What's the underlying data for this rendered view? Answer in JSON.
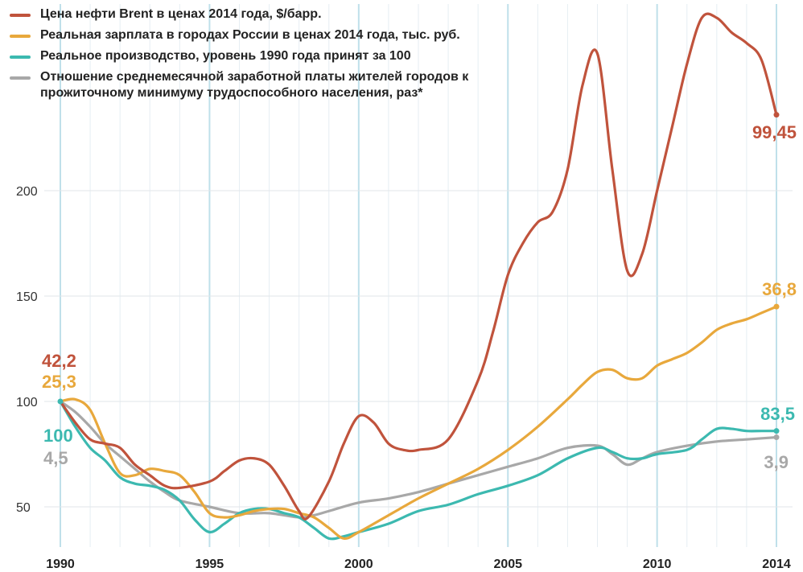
{
  "chart_data": {
    "type": "line",
    "title": "",
    "xlabel": "",
    "ylabel": "",
    "xlim": [
      1990,
      2014
    ],
    "ylim": [
      30,
      275
    ],
    "grid": true,
    "legend_position": "top-left",
    "x_ticks": [
      "1990",
      "1995",
      "2000",
      "2005",
      "2010",
      "2014"
    ],
    "y_ticks": [
      "50",
      "100",
      "150",
      "200"
    ],
    "series": [
      {
        "name": "Цена нефти Brent в ценах 2014 года, $/барр.",
        "color": "#c0533c",
        "x": [
          1990,
          1990.5,
          1991,
          1991.5,
          1992,
          1992.5,
          1993,
          1993.5,
          1994,
          1995,
          1995.5,
          1996,
          1996.5,
          1997,
          1997.5,
          1998,
          1998.3,
          1999,
          1999.5,
          2000,
          2000.5,
          2001,
          2001.5,
          2002,
          2003,
          2004,
          2004.5,
          2005,
          2005.5,
          2006,
          2006.5,
          2007,
          2007.5,
          2008,
          2008.5,
          2009,
          2009.5,
          2010,
          2010.5,
          2011,
          2011.5,
          2012,
          2012.5,
          2013,
          2013.5,
          2014
        ],
        "y": [
          100,
          90,
          82,
          80,
          78,
          70,
          65,
          60,
          59,
          62,
          67,
          72,
          73,
          70,
          60,
          48,
          45,
          62,
          80,
          93,
          90,
          80,
          77,
          77,
          82,
          110,
          133,
          160,
          175,
          185,
          190,
          210,
          250,
          265,
          210,
          162,
          170,
          200,
          230,
          260,
          282,
          282,
          275,
          270,
          262,
          236
        ],
        "label": "99,45",
        "start_label": "42,2"
      },
      {
        "name": "Реальная зарплата в городах России в ценах 2014 года, тыс. руб.",
        "color": "#e8a83c",
        "x": [
          1990,
          1990.5,
          1991,
          1991.5,
          1992,
          1992.5,
          1993,
          1993.5,
          1994,
          1994.5,
          1995,
          1995.5,
          1996,
          1996.5,
          1997,
          1997.5,
          1998,
          1998.5,
          1999,
          1999.5,
          2000,
          2001,
          2002,
          2003,
          2004,
          2005,
          2006,
          2007,
          2007.5,
          2008,
          2008.5,
          2009,
          2009.5,
          2010,
          2010.5,
          2011,
          2011.5,
          2012,
          2012.5,
          2013,
          2013.5,
          2014
        ],
        "y": [
          100,
          101,
          96,
          80,
          66,
          65,
          68,
          67,
          65,
          57,
          47,
          45,
          46,
          48,
          49,
          49,
          47,
          45,
          40,
          35,
          38,
          46,
          54,
          61,
          68,
          77,
          88,
          101,
          108,
          114,
          115,
          111,
          111,
          117,
          120,
          123,
          128,
          134,
          137,
          139,
          142,
          145
        ],
        "label": "36,8",
        "start_label": "25,3"
      },
      {
        "name": "Реальное производство, уровень 1990 года принят за 100",
        "color": "#3cb9b0",
        "x": [
          1990,
          1990.5,
          1991,
          1991.5,
          1992,
          1992.5,
          1993,
          1993.5,
          1994,
          1994.5,
          1995,
          1995.5,
          1996,
          1996.5,
          1997,
          1997.5,
          1998,
          1998.5,
          1999,
          1999.5,
          2000,
          2001,
          2002,
          2003,
          2004,
          2005,
          2006,
          2007,
          2008,
          2008.5,
          2009,
          2009.5,
          2010,
          2011,
          2011.5,
          2012,
          2012.5,
          2013,
          2013.5,
          2014
        ],
        "y": [
          100,
          88,
          78,
          72,
          64,
          61,
          60,
          58,
          53,
          44,
          38,
          42,
          47,
          49,
          49,
          47,
          45,
          40,
          35,
          36,
          38,
          42,
          48,
          51,
          56,
          60,
          65,
          73,
          78,
          76,
          73,
          73,
          75,
          77,
          82,
          87,
          87,
          86,
          86,
          86
        ],
        "label": "83,5",
        "start_label": "100"
      },
      {
        "name": "Отношение среднемесячной заработной платы жителей городов к прожиточному минимуму трудоспособного населения, раз*",
        "color": "#a8a8a8",
        "x": [
          1990,
          1990.5,
          1991,
          1991.5,
          1992,
          1992.5,
          1993,
          1993.5,
          1994,
          1995,
          1996,
          1997,
          1998,
          1998.5,
          1999,
          2000,
          2001,
          2002,
          2003,
          2004,
          2005,
          2006,
          2007,
          2008,
          2008.5,
          2009,
          2009.5,
          2010,
          2011,
          2012,
          2013,
          2014
        ],
        "y": [
          100,
          95,
          88,
          80,
          74,
          68,
          62,
          57,
          53,
          50,
          47,
          47,
          45,
          46,
          48,
          52,
          54,
          57,
          61,
          65,
          69,
          73,
          78,
          79,
          75,
          70,
          73,
          76,
          79,
          81,
          82,
          83
        ],
        "label": "3,9",
        "start_label": "4,5"
      }
    ]
  }
}
